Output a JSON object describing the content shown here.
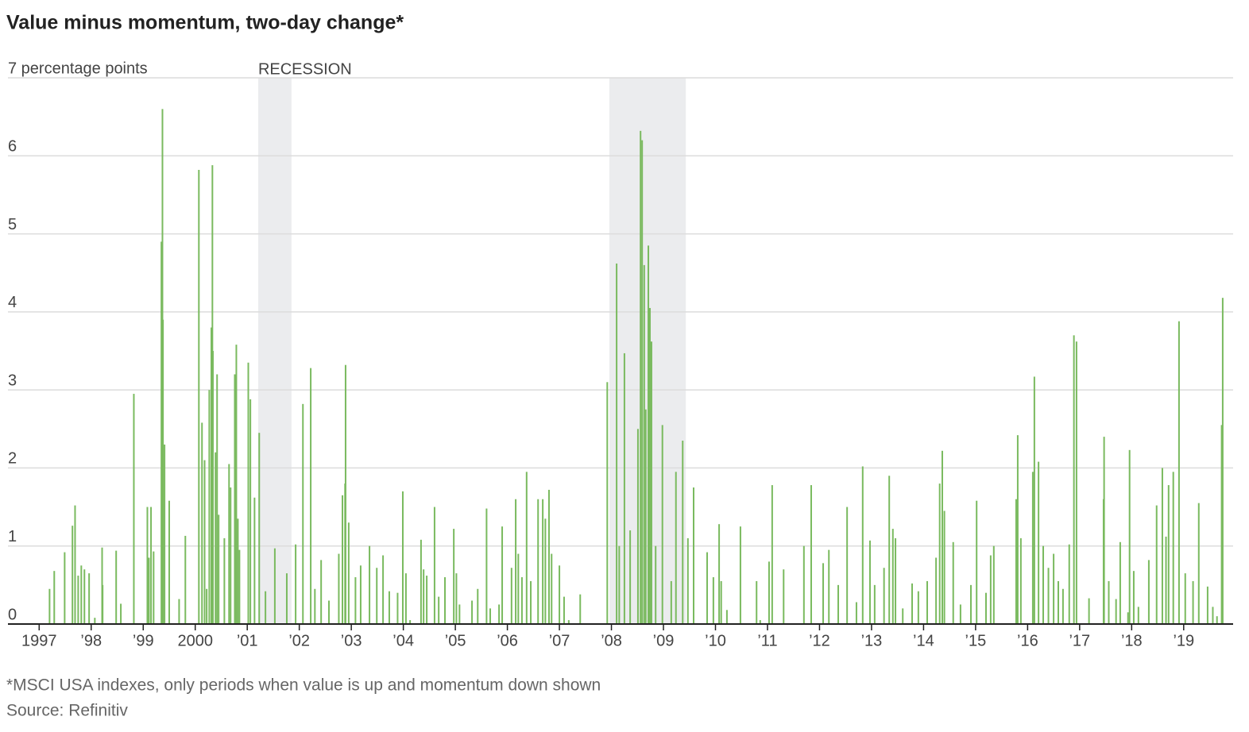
{
  "chart_data": {
    "type": "bar",
    "title": "Value minus momentum, two-day change*",
    "footnote": "*MSCI USA indexes, only periods when value is up and momentum down shown",
    "source": "Source: Refinitiv",
    "recession_label": "RECESSION",
    "recessions": [
      [
        2001.21,
        2001.85
      ],
      [
        2007.96,
        2009.43
      ]
    ],
    "color": "#7aba5f",
    "recession_color": "#ebecee",
    "grid": true,
    "xlim": [
      1996.4,
      2019.95
    ],
    "ylim": [
      0,
      7
    ],
    "yticks": [
      0,
      1,
      2,
      3,
      4,
      5,
      6,
      {
        "value": 7,
        "label": "7 percentage points"
      }
    ],
    "xticks": [
      1997,
      {
        "value": 1998,
        "label": "’98"
      },
      {
        "value": 1999,
        "label": "’99"
      },
      2000,
      {
        "value": 2001,
        "label": "’01"
      },
      {
        "value": 2002,
        "label": "’02"
      },
      {
        "value": 2003,
        "label": "’03"
      },
      {
        "value": 2004,
        "label": "’04"
      },
      {
        "value": 2005,
        "label": "’05"
      },
      {
        "value": 2006,
        "label": "’06"
      },
      {
        "value": 2007,
        "label": "’07"
      },
      {
        "value": 2008,
        "label": "’08"
      },
      {
        "value": 2009,
        "label": "’09"
      },
      {
        "value": 2010,
        "label": "’10"
      },
      {
        "value": 2011,
        "label": "’11"
      },
      {
        "value": 2012,
        "label": "’12"
      },
      {
        "value": 2013,
        "label": "’13"
      },
      {
        "value": 2014,
        "label": "’14"
      },
      {
        "value": 2015,
        "label": "’15"
      },
      {
        "value": 2016,
        "label": "’16"
      },
      {
        "value": 2017,
        "label": "’17"
      },
      {
        "value": 2018,
        "label": "’18"
      },
      {
        "value": 2019,
        "label": "’19"
      }
    ],
    "x": [
      1997.2,
      1997.29,
      1997.49,
      1997.64,
      1997.69,
      1997.75,
      1997.81,
      1997.87,
      1997.96,
      1998.07,
      1998.21,
      1998.22,
      1998.48,
      1998.57,
      1998.82,
      1999.08,
      1999.11,
      1999.15,
      1999.2,
      1999.35,
      1999.37,
      1999.38,
      1999.41,
      1999.5,
      1999.69,
      1999.81,
      2000.07,
      2000.13,
      2000.18,
      2000.22,
      2000.27,
      2000.31,
      2000.33,
      2000.34,
      2000.39,
      2000.42,
      2000.45,
      2000.56,
      2000.65,
      2000.68,
      2000.76,
      2000.79,
      2000.82,
      2000.85,
      2001.02,
      2001.06,
      2001.14,
      2001.23,
      2001.35,
      2001.53,
      2001.76,
      2001.93,
      2002.07,
      2002.22,
      2002.3,
      2002.42,
      2002.57,
      2002.76,
      2002.83,
      2002.88,
      2002.89,
      2002.95,
      2003.08,
      2003.18,
      2003.35,
      2003.49,
      2003.61,
      2003.73,
      2003.89,
      2003.99,
      2004.05,
      2004.13,
      2004.34,
      2004.39,
      2004.45,
      2004.6,
      2004.68,
      2004.8,
      2004.97,
      2005.02,
      2005.08,
      2005.32,
      2005.43,
      2005.6,
      2005.67,
      2005.84,
      2005.9,
      2006.08,
      2006.16,
      2006.21,
      2006.28,
      2006.37,
      2006.45,
      2006.59,
      2006.68,
      2006.73,
      2006.8,
      2006.85,
      2007.0,
      2007.09,
      2007.18,
      2007.4,
      2007.92,
      2008.1,
      2008.15,
      2008.25,
      2008.36,
      2008.51,
      2008.56,
      2008.59,
      2008.63,
      2008.66,
      2008.71,
      2008.74,
      2008.77,
      2008.85,
      2008.98,
      2009.15,
      2009.24,
      2009.37,
      2009.47,
      2009.58,
      2009.84,
      2009.96,
      2010.07,
      2010.11,
      2010.22,
      2010.48,
      2010.79,
      2010.86,
      2011.03,
      2011.09,
      2011.31,
      2011.7,
      2011.84,
      2012.07,
      2012.18,
      2012.36,
      2012.53,
      2012.71,
      2012.83,
      2012.97,
      2013.06,
      2013.24,
      2013.34,
      2013.41,
      2013.46,
      2013.6,
      2013.78,
      2013.9,
      2014.07,
      2014.24,
      2014.31,
      2014.36,
      2014.4,
      2014.57,
      2014.71,
      2014.91,
      2015.02,
      2015.2,
      2015.29,
      2015.35,
      2015.78,
      2015.81,
      2015.87,
      2016.1,
      2016.13,
      2016.21,
      2016.3,
      2016.4,
      2016.5,
      2016.59,
      2016.68,
      2016.8,
      2016.89,
      2016.94,
      2017.18,
      2017.46,
      2017.47,
      2017.56,
      2017.7,
      2017.78,
      2017.93,
      2017.96,
      2018.04,
      2018.13,
      2018.33,
      2018.48,
      2018.59,
      2018.66,
      2018.71,
      2018.8,
      2018.91,
      2019.03,
      2019.18,
      2019.29,
      2019.46,
      2019.56,
      2019.64,
      2019.73,
      2019.75
    ],
    "values": [
      0.45,
      0.68,
      0.92,
      1.26,
      1.52,
      0.62,
      0.75,
      0.7,
      0.65,
      0.08,
      0.98,
      0.5,
      0.94,
      0.26,
      2.95,
      1.5,
      0.85,
      1.5,
      0.93,
      4.9,
      6.6,
      3.9,
      2.3,
      1.58,
      0.32,
      1.13,
      5.82,
      2.58,
      2.1,
      0.45,
      3.0,
      3.8,
      5.88,
      3.5,
      2.2,
      3.2,
      1.4,
      1.1,
      2.05,
      1.75,
      3.2,
      3.58,
      1.35,
      0.95,
      3.35,
      2.88,
      1.62,
      2.45,
      0.42,
      0.97,
      0.65,
      1.02,
      2.82,
      3.28,
      0.45,
      0.82,
      0.3,
      0.9,
      1.65,
      1.8,
      3.32,
      1.3,
      0.6,
      0.75,
      1.0,
      0.72,
      0.88,
      0.42,
      0.4,
      1.7,
      0.65,
      0.05,
      1.08,
      0.7,
      0.62,
      1.5,
      0.35,
      0.6,
      1.22,
      0.65,
      0.25,
      0.3,
      0.45,
      1.48,
      0.2,
      0.25,
      1.25,
      0.72,
      1.6,
      0.9,
      0.6,
      1.95,
      0.55,
      1.6,
      1.6,
      1.35,
      1.72,
      0.9,
      0.75,
      0.35,
      0.05,
      0.38,
      3.1,
      4.62,
      1.0,
      3.47,
      1.2,
      2.5,
      6.32,
      6.2,
      4.6,
      2.75,
      4.85,
      4.05,
      3.62,
      1.0,
      2.55,
      0.55,
      1.95,
      2.35,
      1.1,
      1.75,
      0.92,
      0.6,
      1.28,
      0.55,
      0.18,
      1.25,
      0.55,
      0.05,
      0.8,
      1.78,
      0.7,
      1.0,
      1.78,
      0.78,
      0.95,
      0.5,
      1.5,
      0.28,
      2.02,
      1.07,
      0.5,
      0.72,
      1.9,
      1.22,
      1.1,
      0.2,
      0.52,
      0.42,
      0.55,
      0.85,
      1.8,
      2.22,
      1.45,
      1.05,
      0.25,
      0.5,
      1.58,
      0.4,
      0.88,
      1.0,
      1.6,
      2.42,
      1.1,
      1.95,
      3.17,
      2.08,
      1.0,
      0.72,
      0.9,
      0.55,
      0.45,
      1.02,
      3.7,
      3.62,
      0.33,
      1.6,
      2.4,
      0.55,
      0.32,
      1.05,
      0.15,
      2.23,
      0.68,
      0.22,
      0.82,
      1.52,
      2.0,
      1.12,
      1.78,
      1.95,
      3.88,
      0.65,
      0.55,
      1.55,
      0.48,
      0.22,
      0.1,
      2.55,
      4.18
    ]
  }
}
